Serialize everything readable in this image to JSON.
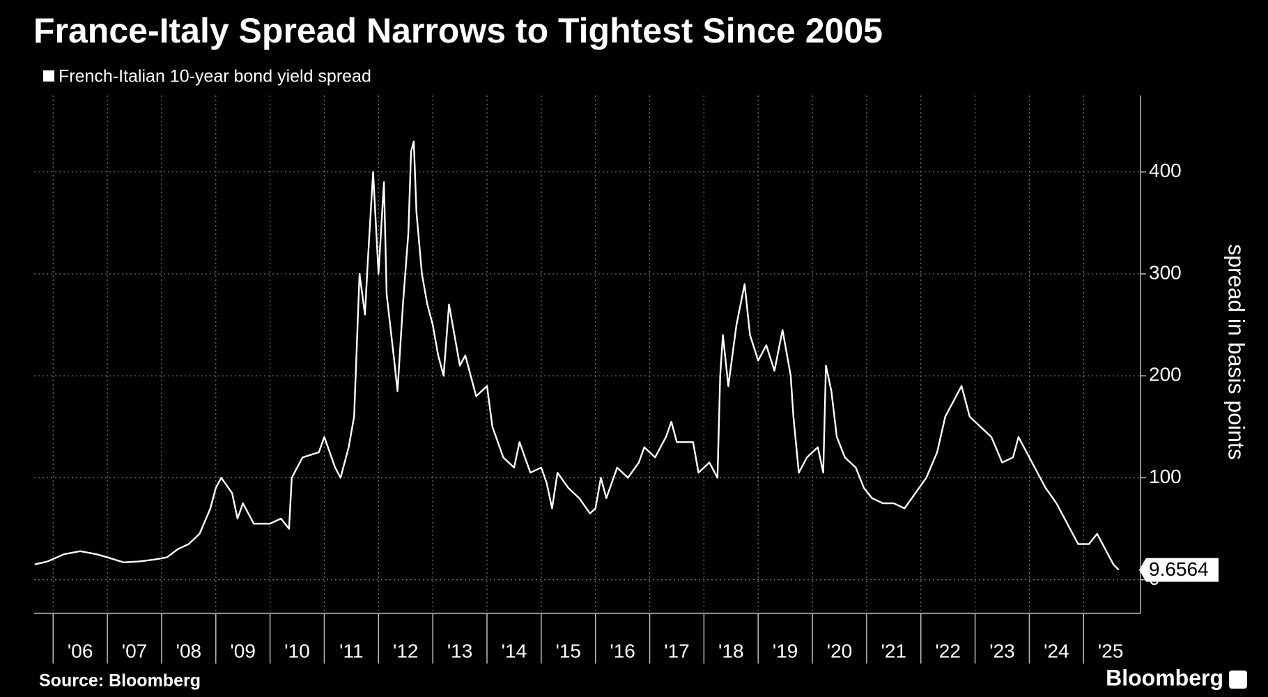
{
  "chart_data": {
    "type": "line",
    "title": "France-Italy Spread Narrows to Tightest Since 2005",
    "y_label": "spread in basis points",
    "source": "Source: Bloomberg",
    "brand": "Bloomberg",
    "grid": true,
    "xlim": [
      2005.65,
      2026.05
    ],
    "ylim": [
      -33,
      475
    ],
    "yticks": [
      0,
      100,
      200,
      300,
      400
    ],
    "xticks": [
      {
        "value": 2006,
        "label": "'06"
      },
      {
        "value": 2007,
        "label": "'07"
      },
      {
        "value": 2008,
        "label": "'08"
      },
      {
        "value": 2009,
        "label": "'09"
      },
      {
        "value": 2010,
        "label": "'10"
      },
      {
        "value": 2011,
        "label": "'11"
      },
      {
        "value": 2012,
        "label": "'12"
      },
      {
        "value": 2013,
        "label": "'13"
      },
      {
        "value": 2014,
        "label": "'14"
      },
      {
        "value": 2015,
        "label": "'15"
      },
      {
        "value": 2016,
        "label": "'16"
      },
      {
        "value": 2017,
        "label": "'17"
      },
      {
        "value": 2018,
        "label": "'18"
      },
      {
        "value": 2019,
        "label": "'19"
      },
      {
        "value": 2020,
        "label": "'20"
      },
      {
        "value": 2021,
        "label": "'21"
      },
      {
        "value": 2022,
        "label": "'22"
      },
      {
        "value": 2023,
        "label": "'23"
      },
      {
        "value": 2024,
        "label": "'24"
      },
      {
        "value": 2025,
        "label": "'25"
      }
    ],
    "x": [
      2005.66,
      2005.9,
      2006.2,
      2006.5,
      2006.8,
      2007.0,
      2007.3,
      2007.6,
      2007.9,
      2008.1,
      2008.3,
      2008.5,
      2008.7,
      2008.9,
      2009.0,
      2009.1,
      2009.3,
      2009.4,
      2009.5,
      2009.7,
      2010.0,
      2010.2,
      2010.35,
      2010.4,
      2010.6,
      2010.9,
      2011.0,
      2011.2,
      2011.3,
      2011.45,
      2011.55,
      2011.6,
      2011.65,
      2011.75,
      2011.8,
      2011.9,
      2012.0,
      2012.1,
      2012.15,
      2012.3,
      2012.35,
      2012.45,
      2012.55,
      2012.6,
      2012.65,
      2012.7,
      2012.8,
      2012.9,
      2013.0,
      2013.1,
      2013.2,
      2013.3,
      2013.4,
      2013.5,
      2013.6,
      2013.8,
      2014.0,
      2014.1,
      2014.3,
      2014.5,
      2014.6,
      2014.8,
      2015.0,
      2015.1,
      2015.2,
      2015.3,
      2015.5,
      2015.7,
      2015.9,
      2016.0,
      2016.1,
      2016.2,
      2016.4,
      2016.6,
      2016.8,
      2016.9,
      2017.1,
      2017.3,
      2017.4,
      2017.5,
      2017.8,
      2017.9,
      2018.1,
      2018.25,
      2018.3,
      2018.35,
      2018.45,
      2018.6,
      2018.75,
      2018.85,
      2019.0,
      2019.15,
      2019.3,
      2019.45,
      2019.6,
      2019.65,
      2019.75,
      2019.9,
      2020.1,
      2020.2,
      2020.25,
      2020.35,
      2020.45,
      2020.6,
      2020.8,
      2020.95,
      2021.1,
      2021.3,
      2021.5,
      2021.7,
      2021.9,
      2022.1,
      2022.3,
      2022.45,
      2022.6,
      2022.75,
      2022.9,
      2023.1,
      2023.3,
      2023.5,
      2023.7,
      2023.8,
      2023.95,
      2024.1,
      2024.3,
      2024.5,
      2024.7,
      2024.9,
      2025.1,
      2025.25,
      2025.4,
      2025.55,
      2025.65
    ],
    "series": [
      {
        "name": "French-Italian 10-year bond yield spread",
        "color": "#ffffff",
        "values": [
          15,
          18,
          25,
          28,
          25,
          22,
          17,
          18,
          20,
          22,
          30,
          35,
          45,
          70,
          90,
          100,
          85,
          60,
          75,
          55,
          55,
          60,
          50,
          100,
          120,
          125,
          140,
          110,
          100,
          130,
          160,
          230,
          300,
          260,
          310,
          400,
          300,
          390,
          280,
          210,
          185,
          270,
          340,
          420,
          430,
          360,
          300,
          270,
          250,
          220,
          200,
          270,
          240,
          210,
          220,
          180,
          190,
          150,
          120,
          110,
          135,
          105,
          110,
          95,
          70,
          105,
          90,
          80,
          65,
          70,
          100,
          80,
          110,
          100,
          115,
          130,
          120,
          140,
          155,
          135,
          135,
          105,
          115,
          100,
          200,
          240,
          190,
          250,
          290,
          240,
          215,
          230,
          205,
          245,
          200,
          160,
          105,
          120,
          130,
          105,
          210,
          185,
          140,
          120,
          110,
          90,
          80,
          75,
          75,
          70,
          85,
          100,
          125,
          160,
          175,
          190,
          160,
          150,
          140,
          115,
          120,
          140,
          125,
          110,
          90,
          75,
          55,
          35,
          35,
          45,
          30,
          15,
          9.6564
        ]
      }
    ]
  }
}
